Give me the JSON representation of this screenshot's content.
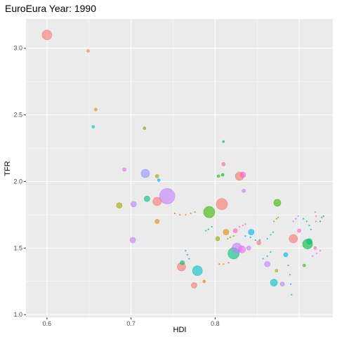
{
  "chart_data": {
    "type": "scatter",
    "title": "EuroEura Year: 1990",
    "xlabel": "HDI",
    "ylabel": "TFR",
    "xlim": [
      0.575,
      0.94
    ],
    "ylim": [
      0.98,
      3.22
    ],
    "x_ticks": [
      0.6,
      0.7,
      0.8
    ],
    "x_tick_labels": [
      "0.6",
      "0.7",
      "0.8"
    ],
    "x_minor_ticks": [
      0.65,
      0.75,
      0.85
    ],
    "extra_x_gridlines": [
      0.9
    ],
    "y_ticks": [
      1.0,
      1.5,
      2.0,
      2.5,
      3.0
    ],
    "y_tick_labels": [
      "1.0",
      "1.5",
      "2.0",
      "2.5",
      "3.0"
    ],
    "y_minor_ticks": [
      1.25,
      1.75,
      2.25,
      2.75
    ],
    "grid": true,
    "legend": "none",
    "panel_background": "#ebebeb",
    "grid_color": "#ffffff",
    "bubbles": [
      {
        "x": 0.6,
        "y": 3.1,
        "size": 7,
        "color": "#F8766D"
      },
      {
        "x": 0.649,
        "y": 2.98,
        "size": 2,
        "color": "#F8766D"
      },
      {
        "x": 0.658,
        "y": 2.54,
        "size": 2,
        "color": "#E58700"
      },
      {
        "x": 0.655,
        "y": 2.41,
        "size": 2,
        "color": "#00BFC4"
      },
      {
        "x": 0.716,
        "y": 2.4,
        "size": 2,
        "color": "#7CAE00"
      },
      {
        "x": 0.692,
        "y": 2.09,
        "size": 2.5,
        "color": "#E76BF3"
      },
      {
        "x": 0.717,
        "y": 2.06,
        "size": 6,
        "color": "#9590FF"
      },
      {
        "x": 0.731,
        "y": 2.04,
        "size": 2.5,
        "color": "#A3A500"
      },
      {
        "x": 0.733,
        "y": 2.01,
        "size": 2,
        "color": "#00B0F6"
      },
      {
        "x": 0.719,
        "y": 1.87,
        "size": 4,
        "color": "#00BF7D"
      },
      {
        "x": 0.743,
        "y": 1.89,
        "size": 11,
        "color": "#C77CFF"
      },
      {
        "x": 0.731,
        "y": 1.85,
        "size": 6,
        "color": "#F8766D"
      },
      {
        "x": 0.686,
        "y": 1.82,
        "size": 4,
        "color": "#A3A500"
      },
      {
        "x": 0.703,
        "y": 1.83,
        "size": 4,
        "color": "#C77CFF"
      },
      {
        "x": 0.731,
        "y": 1.7,
        "size": 3,
        "color": "#E58700"
      },
      {
        "x": 0.702,
        "y": 1.56,
        "size": 4,
        "color": "#C77CFF"
      },
      {
        "x": 0.808,
        "y": 1.83,
        "size": 8,
        "color": "#F8766D"
      },
      {
        "x": 0.793,
        "y": 1.77,
        "size": 8,
        "color": "#39B600"
      },
      {
        "x": 0.829,
        "y": 2.04,
        "size": 6,
        "color": "#F8766D"
      },
      {
        "x": 0.833,
        "y": 2.05,
        "size": 4,
        "color": "#FD61D1"
      },
      {
        "x": 0.81,
        "y": 2.13,
        "size": 2.5,
        "color": "#FF62BC"
      },
      {
        "x": 0.809,
        "y": 2.05,
        "size": 2,
        "color": "#00BA38"
      },
      {
        "x": 0.804,
        "y": 2.04,
        "size": 2,
        "color": "#39B600"
      },
      {
        "x": 0.834,
        "y": 1.93,
        "size": 2.5,
        "color": "#C77CFF"
      },
      {
        "x": 0.81,
        "y": 2.3,
        "size": 1.5,
        "color": "#00BF7D"
      },
      {
        "x": 0.822,
        "y": 1.46,
        "size": 8,
        "color": "#00BF7D"
      },
      {
        "x": 0.826,
        "y": 1.5,
        "size": 7,
        "color": "#C77CFF"
      },
      {
        "x": 0.832,
        "y": 1.49,
        "size": 5,
        "color": "#E76BF3"
      },
      {
        "x": 0.843,
        "y": 1.62,
        "size": 4,
        "color": "#00B0F6"
      },
      {
        "x": 0.84,
        "y": 1.5,
        "size": 3,
        "color": "#C77CFF"
      },
      {
        "x": 0.813,
        "y": 1.62,
        "size": 4,
        "color": "#E58700"
      },
      {
        "x": 0.824,
        "y": 1.63,
        "size": 3,
        "color": "#FF62BC"
      },
      {
        "x": 0.803,
        "y": 1.57,
        "size": 3,
        "color": "#A3A500"
      },
      {
        "x": 0.852,
        "y": 1.54,
        "size": 3,
        "color": "#F8766D"
      },
      {
        "x": 0.76,
        "y": 1.36,
        "size": 6,
        "color": "#F8766D"
      },
      {
        "x": 0.761,
        "y": 1.39,
        "size": 3,
        "color": "#00BF7D"
      },
      {
        "x": 0.779,
        "y": 1.33,
        "size": 7,
        "color": "#00BFC4"
      },
      {
        "x": 0.775,
        "y": 1.22,
        "size": 4,
        "color": "#F8766D"
      },
      {
        "x": 0.862,
        "y": 1.38,
        "size": 4,
        "color": "#C77CFF"
      },
      {
        "x": 0.874,
        "y": 1.84,
        "size": 5,
        "color": "#39B600"
      },
      {
        "x": 0.893,
        "y": 1.57,
        "size": 6,
        "color": "#F8766D"
      },
      {
        "x": 0.91,
        "y": 1.53,
        "size": 7,
        "color": "#00BA38"
      },
      {
        "x": 0.912,
        "y": 1.55,
        "size": 4,
        "color": "#00BF7D"
      },
      {
        "x": 0.87,
        "y": 1.24,
        "size": 5,
        "color": "#00BFC4"
      },
      {
        "x": 0.88,
        "y": 1.23,
        "size": 3,
        "color": "#C77CFF"
      },
      {
        "x": 0.884,
        "y": 1.45,
        "size": 3,
        "color": "#00B0F6"
      },
      {
        "x": 0.9,
        "y": 1.63,
        "size": 2.5,
        "color": "#FD61D1"
      },
      {
        "x": 0.919,
        "y": 1.5,
        "size": 2,
        "color": "#FF62BC"
      },
      {
        "x": 0.906,
        "y": 1.37,
        "size": 2,
        "color": "#39B600"
      },
      {
        "x": 0.873,
        "y": 1.33,
        "size": 2,
        "color": "#A3A500"
      },
      {
        "x": 0.787,
        "y": 1.25,
        "size": 2,
        "color": "#E58700"
      }
    ],
    "trails": [
      {
        "color": "#E58700",
        "points": [
          [
            0.752,
            1.76
          ],
          [
            0.758,
            1.75
          ],
          [
            0.765,
            1.75
          ],
          [
            0.771,
            1.76
          ],
          [
            0.776,
            1.77
          ]
        ]
      },
      {
        "color": "#00B0F6",
        "points": [
          [
            0.836,
            1.59
          ],
          [
            0.842,
            1.58
          ],
          [
            0.848,
            1.56
          ],
          [
            0.853,
            1.56
          ]
        ]
      },
      {
        "color": "#E58700",
        "points": [
          [
            0.805,
            1.38
          ],
          [
            0.81,
            1.38
          ],
          [
            0.816,
            1.39
          ]
        ]
      },
      {
        "color": "#00B0F6",
        "points": [
          [
            0.765,
            1.48
          ],
          [
            0.767,
            1.45
          ],
          [
            0.769,
            1.42
          ]
        ]
      },
      {
        "color": "#00B0F6",
        "points": [
          [
            0.857,
            1.42
          ],
          [
            0.862,
            1.44
          ],
          [
            0.866,
            1.47
          ]
        ]
      },
      {
        "color": "#00BFC4",
        "points": [
          [
            0.862,
            1.57
          ],
          [
            0.866,
            1.6
          ],
          [
            0.869,
            1.62
          ]
        ]
      },
      {
        "color": "#FF62BC",
        "points": [
          [
            0.92,
            1.7
          ],
          [
            0.92,
            1.74
          ],
          [
            0.919,
            1.77
          ]
        ]
      },
      {
        "color": "#00B0F6",
        "points": [
          [
            0.887,
            1.37
          ],
          [
            0.889,
            1.3
          ],
          [
            0.89,
            1.23
          ],
          [
            0.891,
            1.15
          ]
        ]
      },
      {
        "color": "#00BFC4",
        "points": [
          [
            0.905,
            1.72
          ],
          [
            0.909,
            1.7
          ],
          [
            0.912,
            1.67
          ],
          [
            0.914,
            1.64
          ]
        ]
      },
      {
        "color": "#E76BF3",
        "points": [
          [
            0.916,
            1.44
          ],
          [
            0.921,
            1.46
          ],
          [
            0.925,
            1.48
          ]
        ]
      },
      {
        "color": "#A3A500",
        "points": [
          [
            0.87,
            1.7
          ],
          [
            0.873,
            1.72
          ],
          [
            0.875,
            1.73
          ]
        ]
      },
      {
        "color": "#00BA38",
        "points": [
          [
            0.925,
            1.7
          ],
          [
            0.927,
            1.73
          ],
          [
            0.929,
            1.74
          ]
        ]
      },
      {
        "color": "#C77CFF",
        "points": [
          [
            0.893,
            1.7
          ],
          [
            0.896,
            1.72
          ],
          [
            0.899,
            1.74
          ]
        ]
      },
      {
        "color": "#7CAE00",
        "points": [
          [
            0.815,
            1.57
          ],
          [
            0.818,
            1.58
          ],
          [
            0.822,
            1.59
          ]
        ]
      },
      {
        "color": "#00BF7D",
        "points": [
          [
            0.789,
            1.63
          ],
          [
            0.792,
            1.64
          ],
          [
            0.796,
            1.66
          ]
        ]
      },
      {
        "color": "#FD61D1",
        "points": [
          [
            0.829,
            1.66
          ],
          [
            0.833,
            1.67
          ],
          [
            0.836,
            1.68
          ]
        ]
      }
    ]
  }
}
